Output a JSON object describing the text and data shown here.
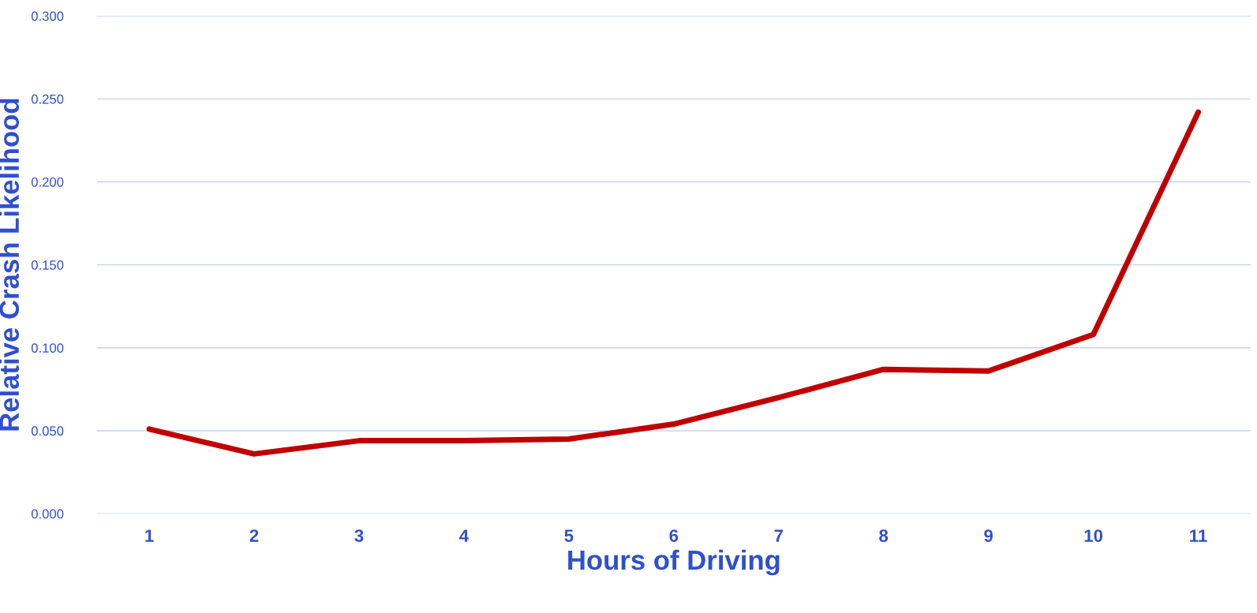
{
  "chart_data": {
    "type": "line",
    "xlabel": "Hours of Driving",
    "ylabel": "Relative Crash Likelihood",
    "categories": [
      "1",
      "2",
      "3",
      "4",
      "5",
      "6",
      "7",
      "8",
      "9",
      "10",
      "11"
    ],
    "series": [
      {
        "color": "#c00000",
        "values": [
          0.051,
          0.036,
          0.044,
          0.044,
          0.045,
          0.054,
          0.07,
          0.087,
          0.086,
          0.108,
          0.242
        ]
      }
    ],
    "ylim": [
      0,
      0.3
    ],
    "yticks": [
      {
        "value": 0,
        "label": "0.000"
      },
      {
        "value": 0.05,
        "label": "0.050"
      },
      {
        "value": 0.1,
        "label": "0.100"
      },
      {
        "value": 0.15,
        "label": "0.150"
      },
      {
        "value": 0.2,
        "label": "0.200"
      },
      {
        "value": 0.25,
        "label": "0.250"
      },
      {
        "value": 0.3,
        "label": "0.300"
      }
    ],
    "grid": "y",
    "marker": "none",
    "line_style": "solid"
  }
}
